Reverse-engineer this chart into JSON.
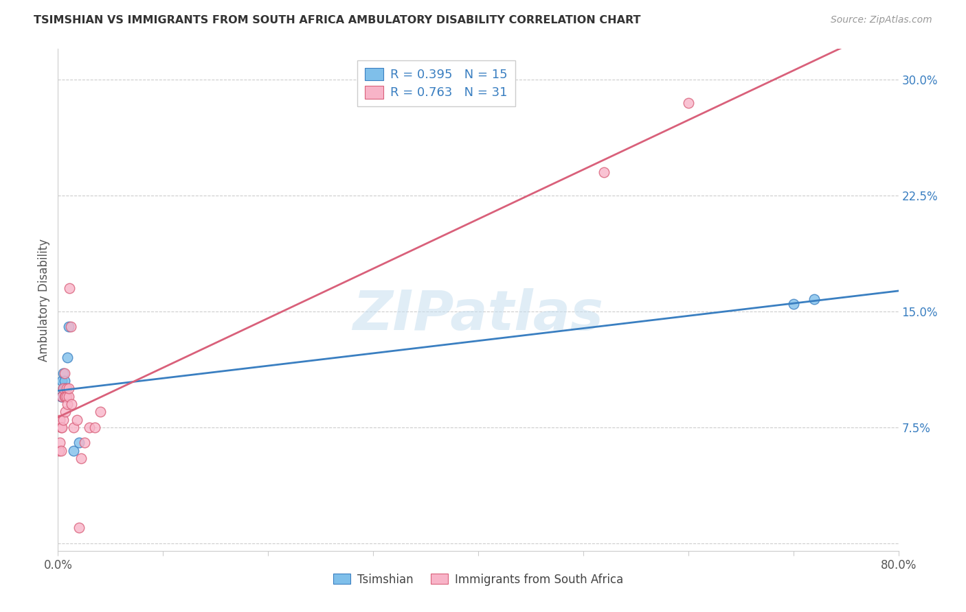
{
  "title": "TSIMSHIAN VS IMMIGRANTS FROM SOUTH AFRICA AMBULATORY DISABILITY CORRELATION CHART",
  "source": "Source: ZipAtlas.com",
  "ylabel": "Ambulatory Disability",
  "watermark": "ZIPatlas",
  "xlim": [
    0.0,
    0.8
  ],
  "ylim": [
    -0.005,
    0.32
  ],
  "xticks": [
    0.0,
    0.1,
    0.2,
    0.3,
    0.4,
    0.5,
    0.6,
    0.7,
    0.8
  ],
  "xticklabels": [
    "0.0%",
    "",
    "",
    "",
    "",
    "",
    "",
    "",
    "80.0%"
  ],
  "yticks_right": [
    0.0,
    0.075,
    0.15,
    0.225,
    0.3
  ],
  "yticklabels_right": [
    "",
    "7.5%",
    "15.0%",
    "22.5%",
    "30.0%"
  ],
  "blue_color": "#7fbfea",
  "pink_color": "#f8b4c8",
  "blue_line_color": "#3a7fc1",
  "pink_line_color": "#d9607a",
  "tsimshian_x": [
    0.003,
    0.004,
    0.004,
    0.005,
    0.005,
    0.006,
    0.006,
    0.007,
    0.007,
    0.009,
    0.01,
    0.015,
    0.02,
    0.7,
    0.72
  ],
  "tsimshian_y": [
    0.095,
    0.095,
    0.105,
    0.1,
    0.11,
    0.1,
    0.105,
    0.095,
    0.1,
    0.12,
    0.14,
    0.06,
    0.065,
    0.155,
    0.158
  ],
  "south_africa_x": [
    0.001,
    0.002,
    0.002,
    0.003,
    0.003,
    0.004,
    0.004,
    0.005,
    0.005,
    0.006,
    0.006,
    0.007,
    0.007,
    0.008,
    0.008,
    0.009,
    0.01,
    0.01,
    0.011,
    0.012,
    0.013,
    0.015,
    0.018,
    0.02,
    0.022,
    0.025,
    0.03,
    0.035,
    0.04,
    0.52,
    0.6
  ],
  "south_africa_y": [
    0.06,
    0.065,
    0.08,
    0.06,
    0.075,
    0.075,
    0.095,
    0.08,
    0.1,
    0.095,
    0.11,
    0.095,
    0.085,
    0.1,
    0.095,
    0.09,
    0.095,
    0.1,
    0.165,
    0.14,
    0.09,
    0.075,
    0.08,
    0.01,
    0.055,
    0.065,
    0.075,
    0.075,
    0.085,
    0.24,
    0.285
  ],
  "grid_color": "#cccccc",
  "bg_color": "#ffffff",
  "legend_text_color": "#3a7fc1",
  "legend_label_color": "#444444"
}
